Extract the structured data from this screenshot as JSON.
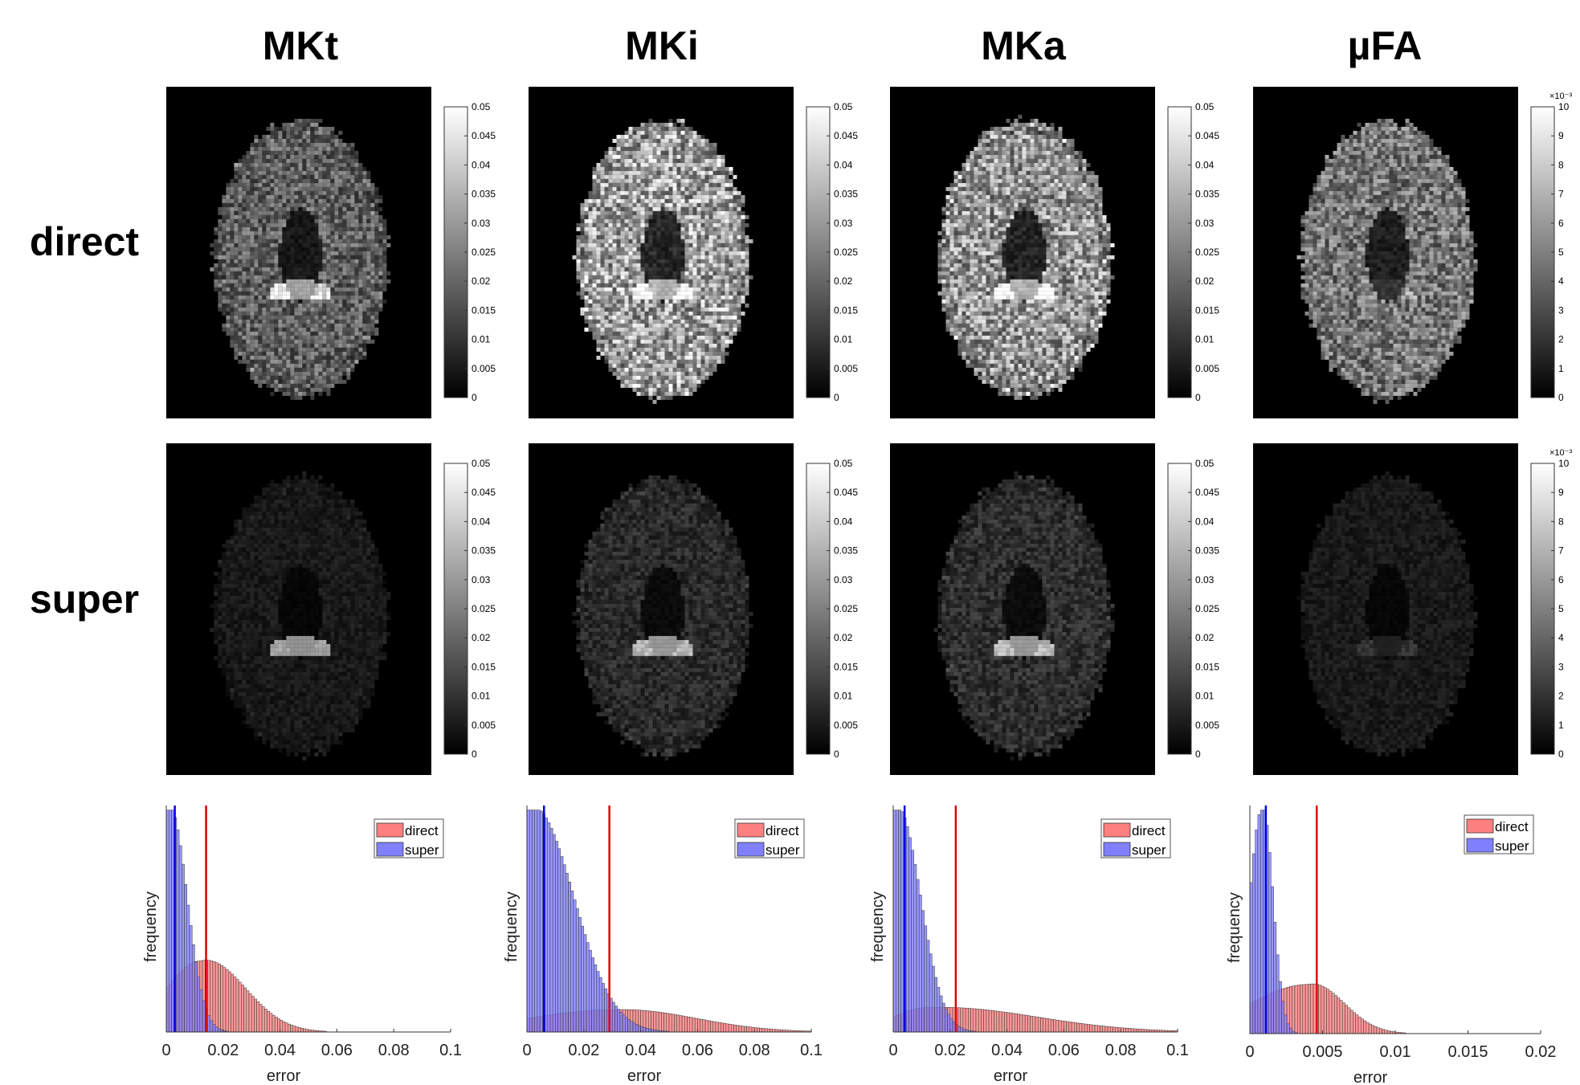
{
  "column_titles": [
    "MKt",
    "MKi",
    "MKa",
    "µFA"
  ],
  "row_labels": [
    "direct",
    "super"
  ],
  "colormap": {
    "low": "#000000",
    "high": "#ffffff"
  },
  "chart_data": [
    {
      "type": "histogram",
      "panel": "MKt",
      "xlabel": "error",
      "ylabel": "frequency",
      "xlim": [
        0,
        0.1
      ],
      "xticks": [
        0,
        0.02,
        0.04,
        0.06,
        0.08,
        0.1
      ],
      "xtick_labels": [
        "0",
        "0.02",
        "0.04",
        "0.06",
        "0.08",
        "0.1"
      ],
      "legend_position": "top-right",
      "series": [
        {
          "name": "direct",
          "color": "#ff8080",
          "mean_line": 0.014,
          "mode": 0.012,
          "peak": 0.32,
          "width": 0.014
        },
        {
          "name": "super",
          "color": "#8080ff",
          "mean_line": 0.003,
          "mode": 0.0005,
          "peak": 1.0,
          "width": 0.006
        }
      ],
      "colorbar": {
        "min": 0,
        "max": 0.05,
        "ticks": [
          "0",
          "0.005",
          "0.01",
          "0.015",
          "0.02",
          "0.025",
          "0.03",
          "0.035",
          "0.04",
          "0.045",
          "0.05"
        ],
        "exponent": ""
      }
    },
    {
      "type": "histogram",
      "panel": "MKi",
      "xlabel": "error",
      "ylabel": "frequency",
      "xlim": [
        0,
        0.1
      ],
      "xticks": [
        0,
        0.02,
        0.04,
        0.06,
        0.08,
        0.1
      ],
      "xtick_labels": [
        "0",
        "0.02",
        "0.04",
        "0.06",
        "0.08",
        "0.1"
      ],
      "legend_position": "top-right",
      "series": [
        {
          "name": "direct",
          "color": "#ff8080",
          "mean_line": 0.029,
          "mode": 0.03,
          "peak": 0.1,
          "width": 0.026
        },
        {
          "name": "super",
          "color": "#8080ff",
          "mean_line": 0.006,
          "mode": 0.0005,
          "peak": 1.0,
          "width": 0.014
        }
      ],
      "colorbar": {
        "min": 0,
        "max": 0.05,
        "ticks": [
          "0",
          "0.005",
          "0.01",
          "0.015",
          "0.02",
          "0.025",
          "0.03",
          "0.035",
          "0.04",
          "0.045",
          "0.05"
        ],
        "exponent": ""
      }
    },
    {
      "type": "histogram",
      "panel": "MKa",
      "xlabel": "error",
      "ylabel": "frequency",
      "xlim": [
        0,
        0.1
      ],
      "xticks": [
        0,
        0.02,
        0.04,
        0.06,
        0.08,
        0.1
      ],
      "xtick_labels": [
        "0",
        "0.02",
        "0.04",
        "0.06",
        "0.08",
        "0.1"
      ],
      "legend_position": "top-right",
      "series": [
        {
          "name": "direct",
          "color": "#ff8080",
          "mean_line": 0.022,
          "mode": 0.012,
          "peak": 0.11,
          "width": 0.034
        },
        {
          "name": "super",
          "color": "#8080ff",
          "mean_line": 0.004,
          "mode": 0.0005,
          "peak": 1.0,
          "width": 0.008
        }
      ],
      "colorbar": {
        "min": 0,
        "max": 0.05,
        "ticks": [
          "0",
          "0.005",
          "0.01",
          "0.015",
          "0.02",
          "0.025",
          "0.03",
          "0.035",
          "0.04",
          "0.045",
          "0.05"
        ],
        "exponent": ""
      }
    },
    {
      "type": "histogram",
      "panel": "µFA",
      "xlabel": "error",
      "ylabel": "frequency",
      "xlim": [
        0,
        0.02
      ],
      "xticks": [
        0,
        0.005,
        0.01,
        0.015,
        0.02
      ],
      "xtick_labels": [
        "0",
        "0.005",
        "0.01",
        "0.015",
        "0.02"
      ],
      "legend_position": "top-right",
      "series": [
        {
          "name": "direct",
          "color": "#ff8080",
          "mean_line": 0.0046,
          "mode": 0.004,
          "peak": 0.22,
          "width": 0.0022
        },
        {
          "name": "super",
          "color": "#8080ff",
          "mean_line": 0.0011,
          "mode": 0.0008,
          "peak": 1.0,
          "width": 0.0007
        }
      ],
      "colorbar": {
        "min": 0,
        "max": 10,
        "ticks": [
          "0",
          "1",
          "2",
          "3",
          "4",
          "5",
          "6",
          "7",
          "8",
          "9",
          "10"
        ],
        "exponent": "×10⁻³"
      }
    }
  ]
}
